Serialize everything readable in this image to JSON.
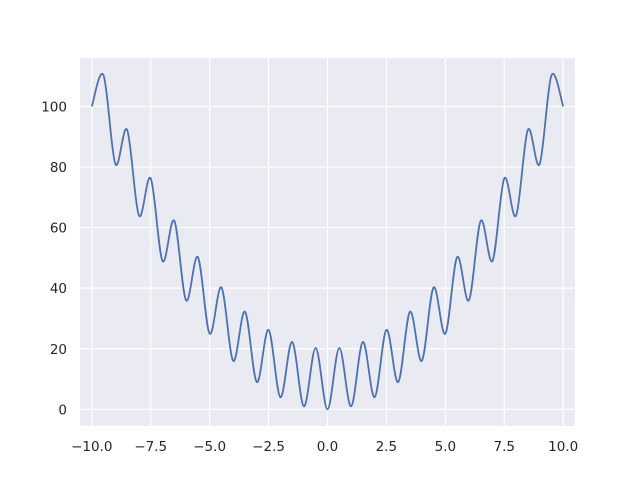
{
  "chart_data": {
    "type": "line",
    "title": "",
    "xlabel": "",
    "ylabel": "",
    "xlim": [
      -10.5,
      10.5
    ],
    "ylim": [
      -5.5,
      116
    ],
    "grid": true,
    "x_ticks": [
      -10.0,
      -7.5,
      -5.0,
      -2.5,
      0.0,
      2.5,
      5.0,
      7.5,
      10.0
    ],
    "x_tick_labels": [
      "−10.0",
      "−7.5",
      "−5.0",
      "−2.5",
      "0.0",
      "2.5",
      "5.0",
      "7.5",
      "10.0"
    ],
    "y_ticks": [
      0,
      20,
      40,
      60,
      80,
      100
    ],
    "y_tick_labels": [
      "0",
      "20",
      "40",
      "60",
      "80",
      "100"
    ],
    "colors": {
      "series": "#4c72b0",
      "plot_background": "#eaeaf2",
      "grid": "#ffffff"
    },
    "series": [
      {
        "x": [
          -10.0,
          -9.5,
          -9.0,
          -8.5,
          -8.0,
          -7.5,
          -7.0,
          -6.5,
          -6.0,
          -5.5,
          -5.0,
          -4.5,
          -4.0,
          -3.5,
          -3.0,
          -2.5,
          -2.0,
          -1.5,
          -1.0,
          -0.5,
          0.0,
          0.5,
          1.0,
          1.5,
          2.0,
          2.5,
          3.0,
          3.5,
          4.0,
          4.5,
          5.0,
          5.5,
          6.0,
          6.5,
          7.0,
          7.5,
          8.0,
          8.5,
          9.0,
          9.5,
          10.0
        ],
        "y": [
          100,
          110.25,
          81,
          92.25,
          64,
          76.25,
          49,
          62.25,
          36,
          50.25,
          25,
          40.25,
          16,
          32.25,
          9,
          26.25,
          4,
          22.25,
          1,
          20.25,
          0,
          20.25,
          1,
          22.25,
          4,
          26.25,
          9,
          32.25,
          16,
          40.25,
          25,
          50.25,
          36,
          62.25,
          49,
          76.25,
          64,
          92.25,
          81,
          110.25,
          100
        ]
      }
    ]
  }
}
